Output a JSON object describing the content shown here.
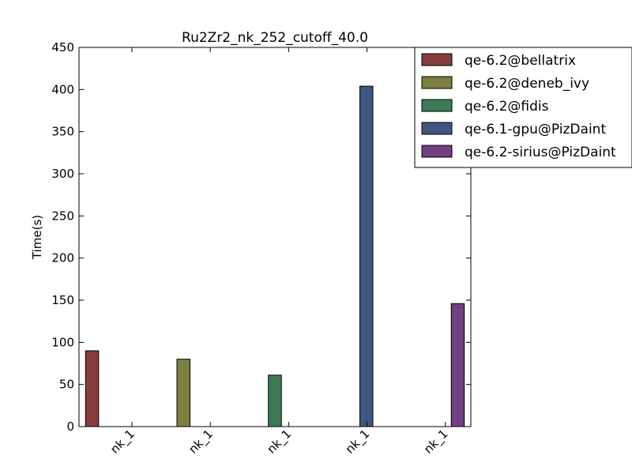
{
  "chart_data": {
    "type": "bar",
    "title": "Ru2Zr2_nk_252_cutoff_40.0",
    "xlabel": "",
    "ylabel": "Time(s)",
    "ylim": [
      0,
      450
    ],
    "yticks": [
      0,
      50,
      100,
      150,
      200,
      250,
      300,
      350,
      400,
      450
    ],
    "categories": [
      "nk_1",
      "nk_1",
      "nk_1",
      "nk_1",
      "nk_1"
    ],
    "grid": false,
    "legend_position": "top-right",
    "series": [
      {
        "name": "qe-6.2@bellatrix",
        "color": "#843c3c",
        "values": [
          90,
          null,
          null,
          null,
          null
        ]
      },
      {
        "name": "qe-6.2@deneb_ivy",
        "color": "#7a7f3f",
        "values": [
          null,
          80,
          null,
          null,
          null
        ]
      },
      {
        "name": "qe-6.2@fidis",
        "color": "#3d7a55",
        "values": [
          null,
          null,
          61,
          null,
          null
        ]
      },
      {
        "name": "qe-6.1-gpu@PizDaint",
        "color": "#3e5680",
        "values": [
          null,
          null,
          null,
          404,
          null
        ]
      },
      {
        "name": "qe-6.2-sirius@PizDaint",
        "color": "#733f80",
        "values": [
          null,
          null,
          null,
          null,
          146
        ]
      }
    ]
  }
}
